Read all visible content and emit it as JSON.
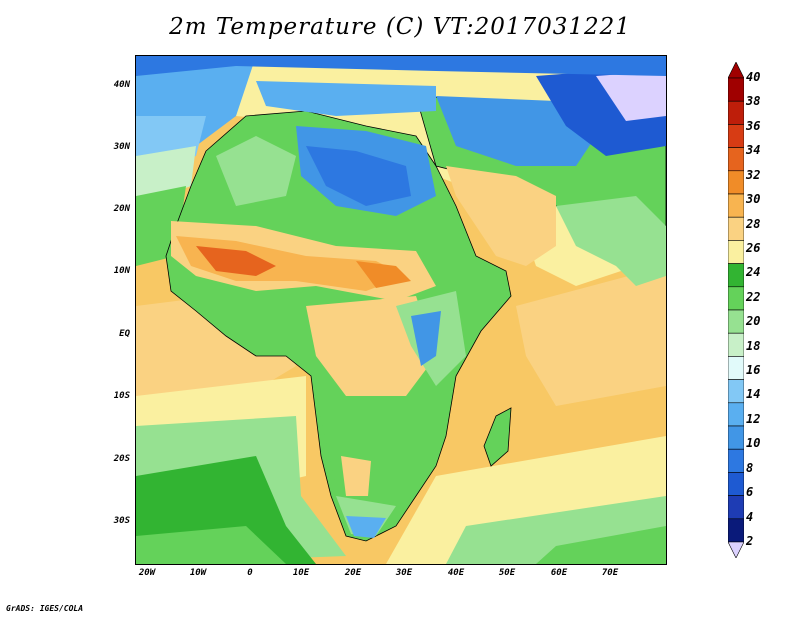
{
  "title": "2m Temperature (C) VT:2017031221",
  "credit": "GrADS: IGES/COLA",
  "lat_labels": [
    "40N",
    "30N",
    "20N",
    "10N",
    "EQ",
    "10S",
    "20S",
    "30S"
  ],
  "lon_labels": [
    "20W",
    "10W",
    "0",
    "10E",
    "20E",
    "30E",
    "40E",
    "50E",
    "60E",
    "70E"
  ],
  "colorbar": {
    "labels": [
      "2",
      "4",
      "6",
      "8",
      "10",
      "12",
      "14",
      "16",
      "18",
      "20",
      "22",
      "24",
      "26",
      "28",
      "30",
      "32",
      "34",
      "36",
      "38",
      "40"
    ],
    "colors": [
      "#dcd2ff",
      "#0a1a7a",
      "#1e3cb4",
      "#1e5ad2",
      "#2d78e1",
      "#4196e6",
      "#5aaff0",
      "#82c8f5",
      "#e1fafa",
      "#c8f0c8",
      "#96e191",
      "#64d25a",
      "#32b432",
      "#faf0a0",
      "#fad282",
      "#f8b450",
      "#f08c28",
      "#e6641e",
      "#d73c14",
      "#be1e0a",
      "#a00000",
      "#a00000"
    ]
  },
  "map": {
    "lon_range": [
      -25,
      80
    ],
    "lat_range": [
      -37,
      45
    ],
    "variable": "2m Temperature",
    "units": "C"
  }
}
